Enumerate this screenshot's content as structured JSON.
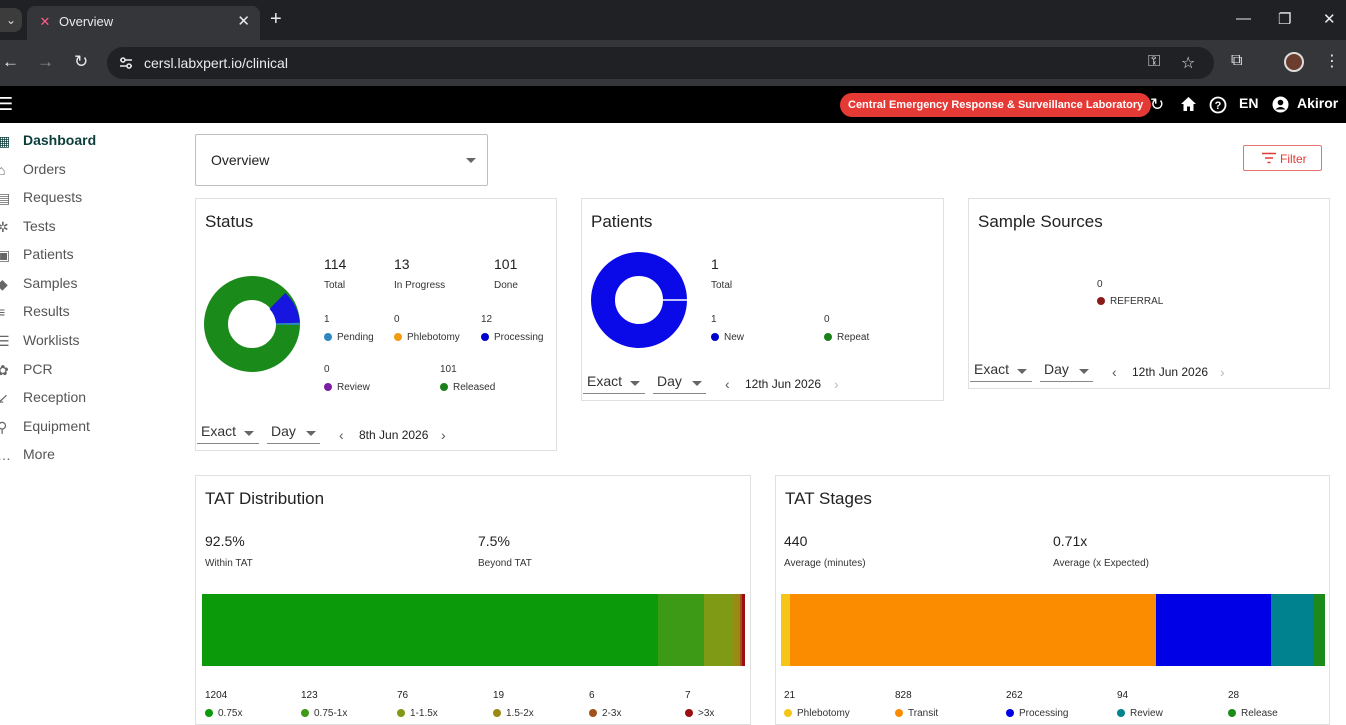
{
  "browser": {
    "tab_title": "Overview",
    "url": "cersl.labxpert.io/clinical"
  },
  "app": {
    "lab_name": "Central Emergency Response & Surveillance Laboratory",
    "language": "EN",
    "user": "Akiror"
  },
  "sidebar": {
    "items": [
      {
        "label": "Dashboard",
        "icon": "dashboard-icon"
      },
      {
        "label": "Orders",
        "icon": "orders-icon"
      },
      {
        "label": "Requests",
        "icon": "requests-icon"
      },
      {
        "label": "Tests",
        "icon": "tests-icon"
      },
      {
        "label": "Patients",
        "icon": "patients-icon"
      },
      {
        "label": "Samples",
        "icon": "samples-icon"
      },
      {
        "label": "Results",
        "icon": "results-icon"
      },
      {
        "label": "Worklists",
        "icon": "worklists-icon"
      },
      {
        "label": "PCR",
        "icon": "pcr-icon"
      },
      {
        "label": "Reception",
        "icon": "reception-icon"
      },
      {
        "label": "Equipment",
        "icon": "equipment-icon"
      },
      {
        "label": "More",
        "icon": "more-icon"
      }
    ]
  },
  "main": {
    "view_select": "Overview",
    "filter_label": "Filter"
  },
  "status": {
    "title": "Status",
    "total": "114",
    "total_label": "Total",
    "in_progress": "13",
    "in_progress_label": "In Progress",
    "done": "101",
    "done_label": "Done",
    "legend": [
      {
        "value": "1",
        "label": "Pending",
        "color": "#2e86c1"
      },
      {
        "value": "0",
        "label": "Phlebotomy",
        "color": "#f39c12"
      },
      {
        "value": "12",
        "label": "Processing",
        "color": "#0000cc"
      },
      {
        "value": "0",
        "label": "Review",
        "color": "#7b1fa2"
      },
      {
        "value": "101",
        "label": "Released",
        "color": "#1b7f1b"
      }
    ],
    "mode": "Exact",
    "period": "Day",
    "date": "8th Jun 2026"
  },
  "patients": {
    "title": "Patients",
    "total": "1",
    "total_label": "Total",
    "legend": [
      {
        "value": "1",
        "label": "New",
        "color": "#0000cc"
      },
      {
        "value": "0",
        "label": "Repeat",
        "color": "#1b7f1b"
      }
    ],
    "mode": "Exact",
    "period": "Day",
    "date": "12th Jun 2026"
  },
  "sample_sources": {
    "title": "Sample Sources",
    "legend": [
      {
        "value": "0",
        "label": "REFERRAL",
        "color": "#8b1a1a"
      }
    ],
    "mode": "Exact",
    "period": "Day",
    "date": "12th Jun 2026"
  },
  "tat_distribution": {
    "title": "TAT Distribution",
    "within": "92.5%",
    "within_label": "Within TAT",
    "beyond": "7.5%",
    "beyond_label": "Beyond TAT",
    "segments": [
      {
        "value": "1204",
        "label": "0.75x",
        "color": "#0a9a0a"
      },
      {
        "value": "123",
        "label": "0.75-1x",
        "color": "#3d9a16"
      },
      {
        "value": "76",
        "label": "1-1.5x",
        "color": "#7f9a14"
      },
      {
        "value": "19",
        "label": "1.5-2x",
        "color": "#9a8a14"
      },
      {
        "value": "6",
        "label": "2-3x",
        "color": "#a0521a"
      },
      {
        "value": "7",
        "label": ">3x",
        "color": "#9a1010"
      }
    ]
  },
  "tat_stages": {
    "title": "TAT Stages",
    "avg_minutes": "440",
    "avg_minutes_label": "Average (minutes)",
    "avg_expected": "0.71x",
    "avg_expected_label": "Average (x Expected)",
    "segments": [
      {
        "value": "21",
        "label": "Phlebotomy",
        "color": "#f5c518"
      },
      {
        "value": "828",
        "label": "Transit",
        "color": "#fb8c00"
      },
      {
        "value": "262",
        "label": "Processing",
        "color": "#0000e6"
      },
      {
        "value": "94",
        "label": "Review",
        "color": "#00838f"
      },
      {
        "value": "28",
        "label": "Release",
        "color": "#1b8a1b"
      }
    ]
  }
}
